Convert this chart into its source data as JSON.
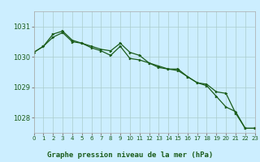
{
  "title": "Graphe pression niveau de la mer (hPa)",
  "bg_color": "#cceeff",
  "grid_color": "#aacccc",
  "line_color": "#1a5c1a",
  "marker_color": "#1a5c1a",
  "line1_x": [
    0,
    1,
    2,
    3,
    4,
    5,
    6,
    7,
    8,
    9,
    10,
    11,
    12,
    13,
    14,
    15,
    16,
    17,
    18,
    19,
    20,
    21,
    22,
    23
  ],
  "line1_y": [
    1030.15,
    1030.35,
    1030.75,
    1030.85,
    1030.55,
    1030.45,
    1030.35,
    1030.25,
    1030.2,
    1030.45,
    1030.15,
    1030.05,
    1029.8,
    1029.65,
    1029.6,
    1029.6,
    1029.35,
    1029.15,
    1029.1,
    1028.85,
    1028.8,
    1028.15,
    1027.65,
    1027.65
  ],
  "line2_x": [
    0,
    1,
    2,
    3,
    4,
    5,
    6,
    7,
    8,
    9,
    10,
    11,
    12,
    13,
    14,
    15,
    16,
    17,
    18,
    19,
    20,
    21,
    22,
    23
  ],
  "line2_y": [
    1030.15,
    1030.35,
    1030.65,
    1030.8,
    1030.5,
    1030.45,
    1030.3,
    1030.2,
    1030.05,
    1030.35,
    1029.95,
    1029.9,
    1029.8,
    1029.7,
    1029.6,
    1029.55,
    1029.35,
    1029.15,
    1029.05,
    1028.7,
    1028.35,
    1028.2,
    1027.65,
    1027.65
  ],
  "ylim_min": 1027.5,
  "ylim_max": 1031.5,
  "yticks": [
    1028,
    1029,
    1030,
    1031
  ],
  "xlim_min": 0,
  "xlim_max": 23
}
